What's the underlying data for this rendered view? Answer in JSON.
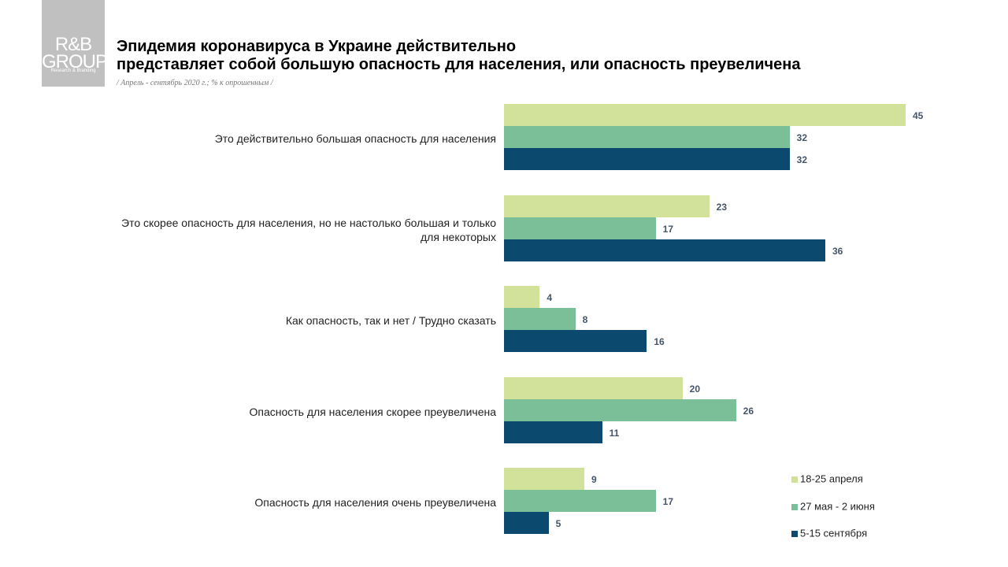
{
  "logo": {
    "name": "R&B GROUP",
    "tagline": "Research & Branding"
  },
  "chart_data": {
    "type": "hbar",
    "title": [
      "Эпидемия коронавируса в Украине действительно",
      "представляет собой большую опасность для населения, или опасность преувеличена"
    ],
    "subtitle": "/ Апрель - сентябрь 2020 г.; % к опрошенным /",
    "categories": [
      "Это действительно большая опасность для населения",
      "Это скорее опасность для населения, но не настолько большая и только для некоторых",
      "Как опасность, так и нет / Трудно сказать",
      "Опасность для населения скорее преувеличена",
      "Опасность для населения очень преувеличена"
    ],
    "series": [
      {
        "name": "18-25 апреля",
        "color": "#d2e29a",
        "values": [
          45,
          23,
          4,
          20,
          9
        ]
      },
      {
        "name": "27 мая - 2 июня",
        "color": "#7bbf98",
        "values": [
          32,
          17,
          8,
          26,
          17
        ]
      },
      {
        "name": "5-15 сентября",
        "color": "#0b4a6e",
        "values": [
          32,
          36,
          16,
          11,
          5
        ]
      }
    ]
  }
}
